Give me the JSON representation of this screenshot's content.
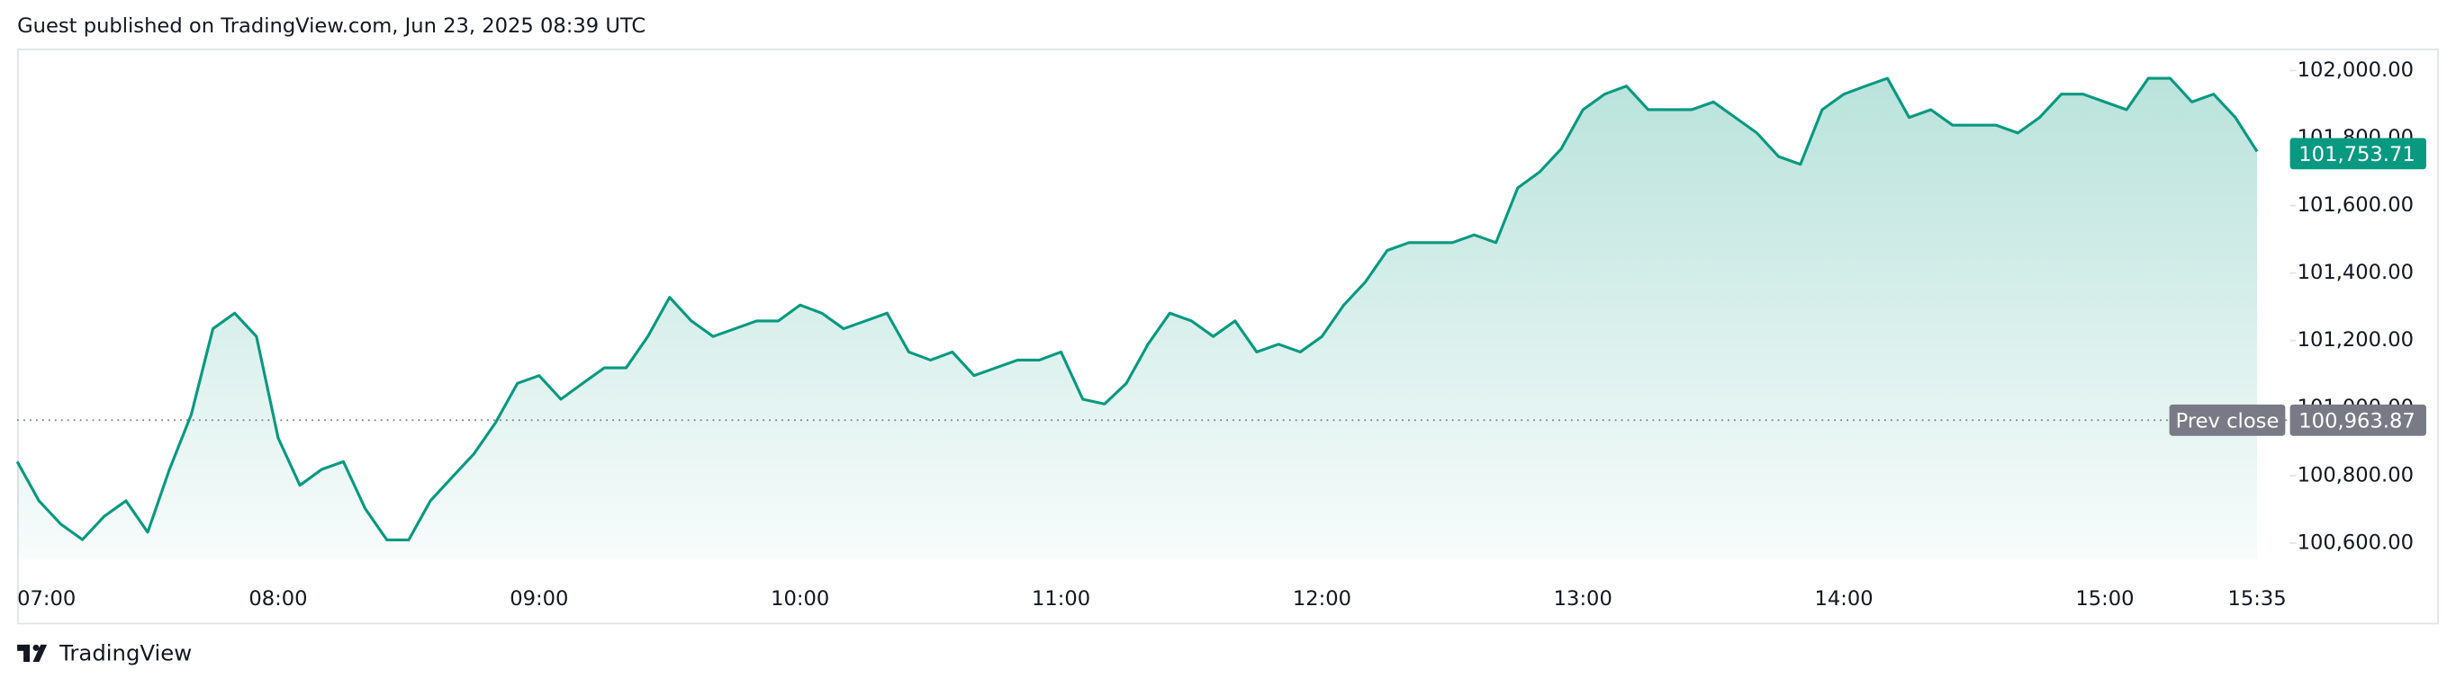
{
  "header": "Guest published on TradingView.com, Jun 23, 2025 08:39 UTC",
  "footer": "TradingView",
  "chart_data": {
    "type": "area",
    "x": [
      "07:00",
      "07:05",
      "07:10",
      "07:15",
      "07:20",
      "07:25",
      "07:30",
      "07:35",
      "07:40",
      "07:45",
      "07:50",
      "07:55",
      "08:00",
      "08:05",
      "08:10",
      "08:15",
      "08:20",
      "08:25",
      "08:30",
      "08:35",
      "08:40",
      "08:45",
      "08:50",
      "08:55",
      "09:00",
      "09:05",
      "09:10",
      "09:15",
      "09:20",
      "09:25",
      "09:30",
      "09:35",
      "09:40",
      "09:45",
      "09:50",
      "09:55",
      "10:00",
      "10:05",
      "10:10",
      "10:15",
      "10:20",
      "10:25",
      "10:30",
      "10:35",
      "10:40",
      "10:45",
      "10:50",
      "10:55",
      "11:00",
      "11:05",
      "11:10",
      "11:15",
      "11:20",
      "11:25",
      "11:30",
      "11:35",
      "11:40",
      "11:45",
      "11:50",
      "11:55",
      "12:00",
      "12:05",
      "12:10",
      "12:15",
      "12:20",
      "12:25",
      "12:30",
      "12:35",
      "12:40",
      "12:45",
      "12:50",
      "12:55",
      "13:00",
      "13:05",
      "13:10",
      "13:15",
      "13:20",
      "13:25",
      "13:30",
      "13:35",
      "13:40",
      "13:45",
      "13:50",
      "13:55",
      "14:00",
      "14:05",
      "14:10",
      "14:15",
      "14:20",
      "14:25",
      "14:30",
      "14:35",
      "14:40",
      "14:45",
      "14:50",
      "14:55",
      "15:00",
      "15:05",
      "15:10",
      "15:15",
      "15:20",
      "15:25",
      "15:30",
      "15:35"
    ],
    "values": [
      100841,
      100725,
      100656,
      100610,
      100679,
      100725,
      100632,
      100818,
      100980,
      101235,
      101281,
      101212,
      100911,
      100771,
      100818,
      100841,
      100702,
      100609,
      100609,
      100725,
      100795,
      100864,
      100957,
      101073,
      101096,
      101026,
      101073,
      101119,
      101119,
      101212,
      101328,
      101258,
      101212,
      101235,
      101258,
      101258,
      101305,
      101281,
      101235,
      101258,
      101281,
      101166,
      101142,
      101166,
      101096,
      101119,
      101142,
      101142,
      101166,
      101026,
      101012,
      101073,
      101189,
      101281,
      101258,
      101212,
      101258,
      101166,
      101189,
      101166,
      101212,
      101305,
      101374,
      101467,
      101490,
      101490,
      101490,
      101513,
      101490,
      101652,
      101699,
      101768,
      101884,
      101930,
      101954,
      101884,
      101884,
      101884,
      101907,
      101861,
      101815,
      101745,
      101722,
      101884,
      101930,
      101954,
      101977,
      101861,
      101884,
      101838,
      101838,
      101838,
      101815,
      101861,
      101930,
      101930,
      101907,
      101884,
      101977,
      101977,
      101907,
      101930,
      101861,
      101760
    ],
    "color": "#089981",
    "ylim": [
      100550,
      102065
    ],
    "yticks": [
      {
        "value": 100600,
        "label": "100,600.00"
      },
      {
        "value": 100800,
        "label": "100,800.00"
      },
      {
        "value": 101000,
        "label": "101,000.00"
      },
      {
        "value": 101200,
        "label": "101,200.00"
      },
      {
        "value": 101400,
        "label": "101,400.00"
      },
      {
        "value": 101600,
        "label": "101,600.00"
      },
      {
        "value": 101800,
        "label": "101,800.00"
      },
      {
        "value": 102000,
        "label": "102,000.00"
      }
    ],
    "xticks": [
      "07:00",
      "08:00",
      "09:00",
      "10:00",
      "11:00",
      "12:00",
      "13:00",
      "14:00",
      "15:00",
      "15:35"
    ],
    "last_price": {
      "value": 101753.71,
      "label": "101,753.71"
    },
    "prev_close": {
      "name": "Prev close",
      "value": 100963.87,
      "label": "100,963.87"
    }
  }
}
